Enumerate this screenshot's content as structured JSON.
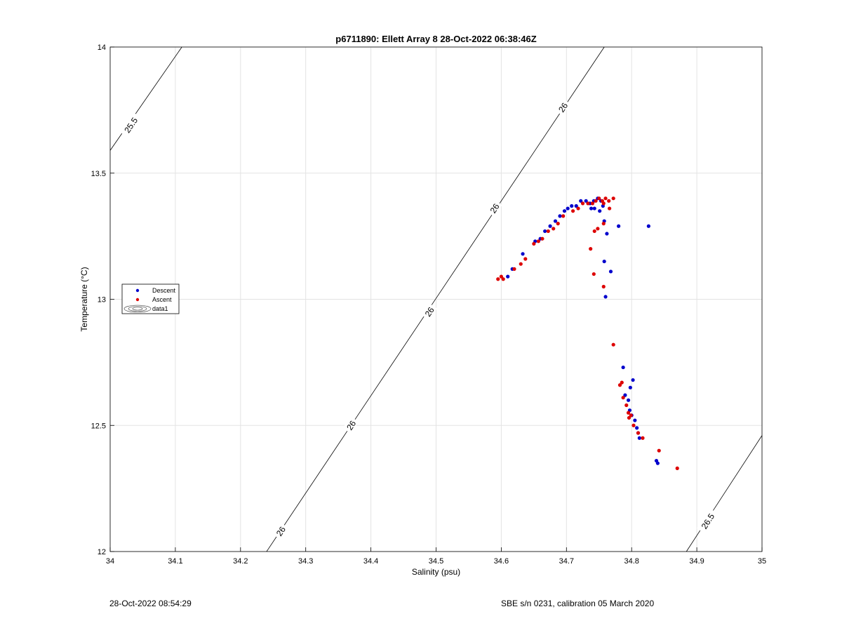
{
  "chart_data": {
    "type": "scatter",
    "title": "p6711890: Ellett Array 8 28-Oct-2022 06:38:46Z",
    "xlabel": "Salinity (psu)",
    "ylabel": "Temperature (°C)",
    "xlim": [
      34,
      35
    ],
    "ylim": [
      12,
      14
    ],
    "x_ticks": [
      "34",
      "34.1",
      "34.2",
      "34.3",
      "34.4",
      "34.5",
      "34.6",
      "34.7",
      "34.8",
      "34.9",
      "35"
    ],
    "y_ticks": [
      "12",
      "12.5",
      "13",
      "13.5",
      "14"
    ],
    "grid": true,
    "legend_position": "left",
    "legend": [
      "Descent",
      "Ascent",
      "data1"
    ],
    "series": [
      {
        "name": "Descent",
        "color": "#0000cc",
        "points": [
          [
            34.61,
            13.09
          ],
          [
            34.617,
            13.12
          ],
          [
            34.633,
            13.18
          ],
          [
            34.652,
            13.23
          ],
          [
            34.66,
            13.24
          ],
          [
            34.667,
            13.27
          ],
          [
            34.675,
            13.29
          ],
          [
            34.683,
            13.31
          ],
          [
            34.69,
            13.33
          ],
          [
            34.697,
            13.35
          ],
          [
            34.702,
            13.36
          ],
          [
            34.708,
            13.37
          ],
          [
            34.715,
            13.37
          ],
          [
            34.722,
            13.39
          ],
          [
            34.73,
            13.39
          ],
          [
            34.736,
            13.38
          ],
          [
            34.742,
            13.39
          ],
          [
            34.748,
            13.4
          ],
          [
            34.753,
            13.39
          ],
          [
            34.743,
            13.36
          ],
          [
            34.738,
            13.36
          ],
          [
            34.751,
            13.35
          ],
          [
            34.756,
            13.37
          ],
          [
            34.758,
            13.31
          ],
          [
            34.762,
            13.26
          ],
          [
            34.78,
            13.29
          ],
          [
            34.826,
            13.29
          ],
          [
            34.758,
            13.15
          ],
          [
            34.768,
            13.11
          ],
          [
            34.76,
            13.01
          ],
          [
            34.787,
            12.73
          ],
          [
            34.79,
            12.62
          ],
          [
            34.795,
            12.6
          ],
          [
            34.798,
            12.65
          ],
          [
            34.802,
            12.68
          ],
          [
            34.797,
            12.56
          ],
          [
            34.8,
            12.54
          ],
          [
            34.805,
            12.52
          ],
          [
            34.808,
            12.49
          ],
          [
            34.81,
            12.47
          ],
          [
            34.812,
            12.45
          ],
          [
            34.838,
            12.36
          ],
          [
            34.84,
            12.35
          ]
        ]
      },
      {
        "name": "Ascent",
        "color": "#dd0000",
        "points": [
          [
            34.595,
            13.08
          ],
          [
            34.6,
            13.09
          ],
          [
            34.603,
            13.08
          ],
          [
            34.62,
            13.12
          ],
          [
            34.63,
            13.14
          ],
          [
            34.637,
            13.16
          ],
          [
            34.65,
            13.22
          ],
          [
            34.657,
            13.23
          ],
          [
            34.663,
            13.24
          ],
          [
            34.672,
            13.27
          ],
          [
            34.68,
            13.28
          ],
          [
            34.687,
            13.3
          ],
          [
            34.695,
            13.33
          ],
          [
            34.71,
            13.35
          ],
          [
            34.718,
            13.36
          ],
          [
            34.725,
            13.38
          ],
          [
            34.733,
            13.38
          ],
          [
            34.74,
            13.38
          ],
          [
            34.745,
            13.39
          ],
          [
            34.75,
            13.4
          ],
          [
            34.755,
            13.39
          ],
          [
            34.76,
            13.4
          ],
          [
            34.765,
            13.39
          ],
          [
            34.772,
            13.4
          ],
          [
            34.757,
            13.38
          ],
          [
            34.766,
            13.36
          ],
          [
            34.737,
            13.2
          ],
          [
            34.743,
            13.27
          ],
          [
            34.748,
            13.28
          ],
          [
            34.757,
            13.3
          ],
          [
            34.742,
            13.1
          ],
          [
            34.757,
            13.05
          ],
          [
            34.772,
            12.82
          ],
          [
            34.782,
            12.66
          ],
          [
            34.785,
            12.67
          ],
          [
            34.787,
            12.61
          ],
          [
            34.792,
            12.58
          ],
          [
            34.795,
            12.55
          ],
          [
            34.796,
            12.53
          ],
          [
            34.799,
            12.54
          ],
          [
            34.803,
            12.5
          ],
          [
            34.81,
            12.47
          ],
          [
            34.817,
            12.45
          ],
          [
            34.842,
            12.4
          ],
          [
            34.87,
            12.33
          ]
        ]
      }
    ],
    "isopycnals": [
      {
        "sigma": 25.5,
        "label": "25.5",
        "segments": [
          [
            [
              34.0,
              13.59
            ],
            [
              34.11,
              14.0
            ]
          ]
        ],
        "label_positions": [
          [
            34.032,
            13.69
          ]
        ]
      },
      {
        "sigma": 26,
        "label": "26",
        "segments": [
          [
            [
              34.24,
              12.0
            ],
            [
              34.758,
              14.0
            ]
          ]
        ],
        "label_positions": [
          [
            34.262,
            12.08
          ],
          [
            34.37,
            12.5
          ],
          [
            34.49,
            12.95
          ],
          [
            34.59,
            13.36
          ],
          [
            34.695,
            13.76
          ]
        ]
      },
      {
        "sigma": 26.5,
        "label": "26.5",
        "segments": [
          [
            [
              34.884,
              12.0
            ],
            [
              35.0,
              12.46
            ]
          ]
        ],
        "label_positions": [
          [
            34.917,
            12.12
          ]
        ]
      }
    ]
  },
  "footer": {
    "timestamp": "28-Oct-2022 08:54:29",
    "calibration": "SBE s/n 0231, calibration 05 March 2020"
  }
}
